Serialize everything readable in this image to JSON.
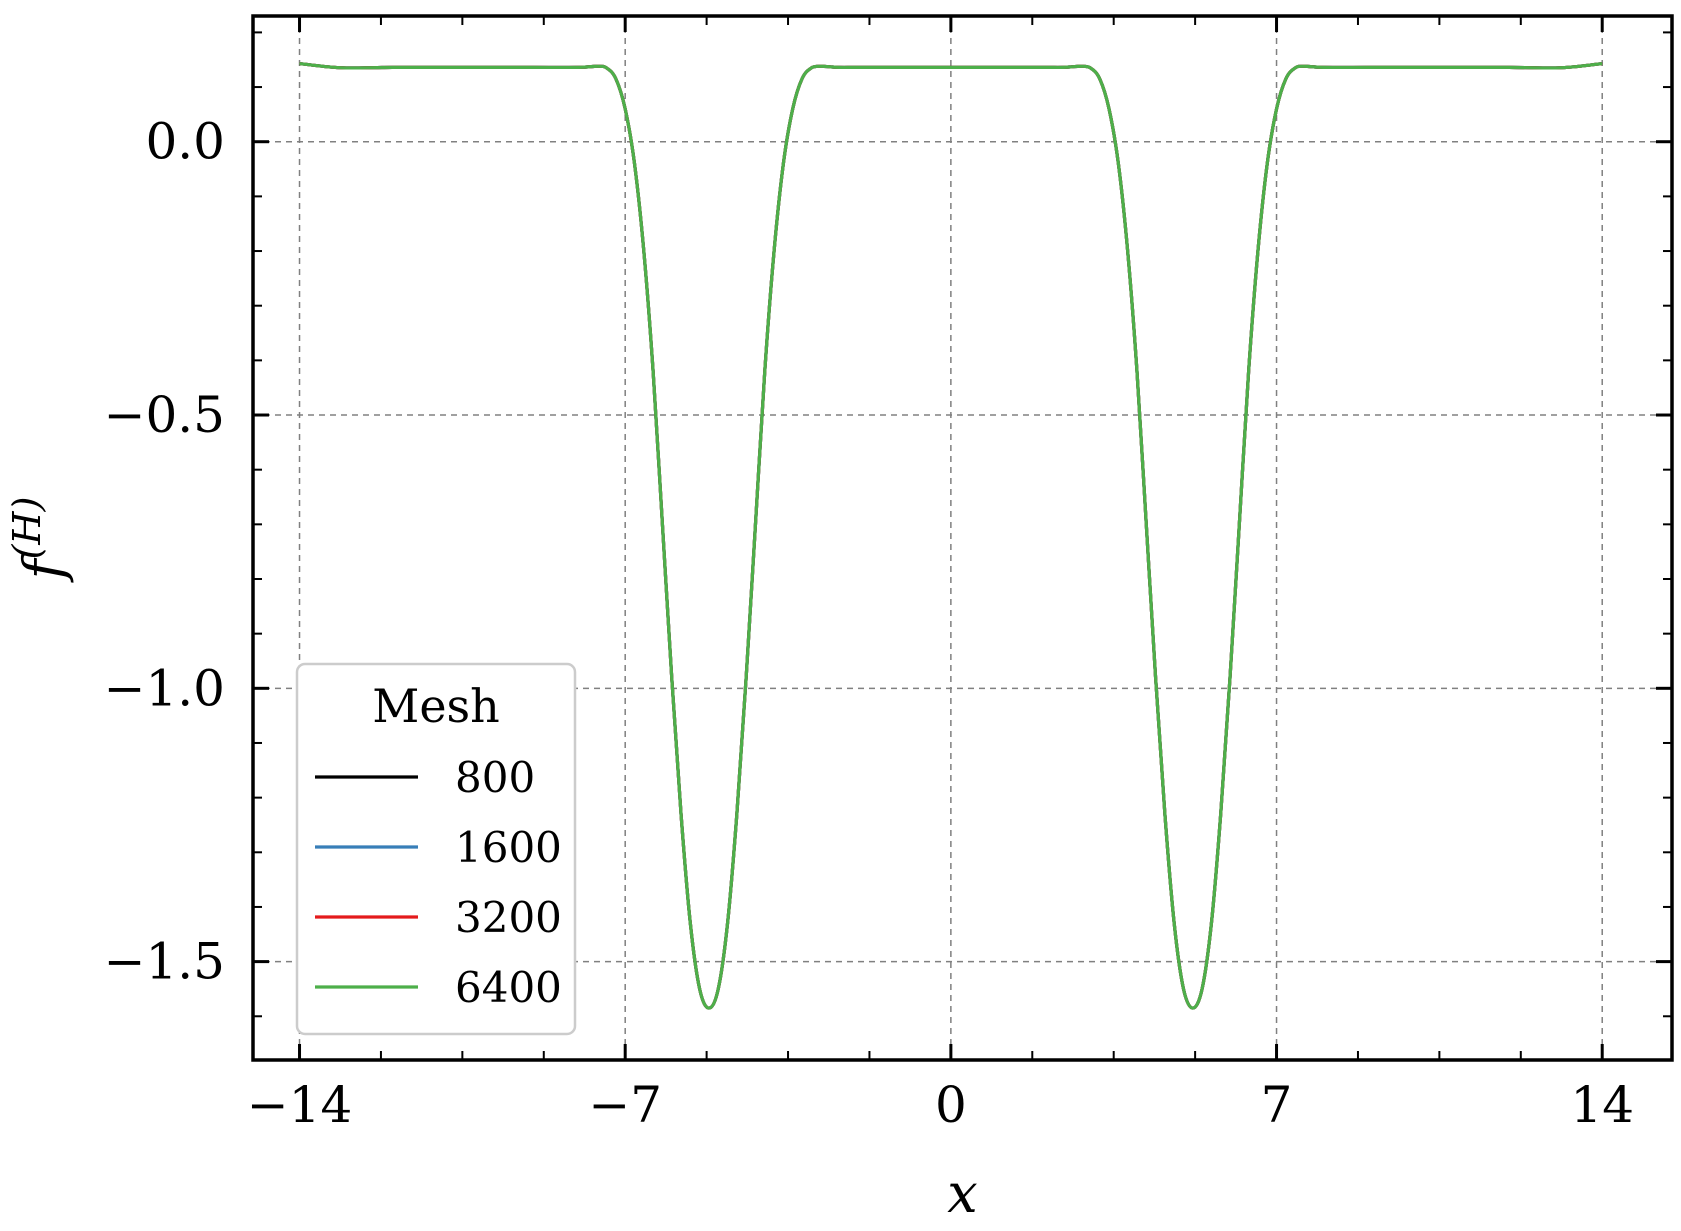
{
  "chart_data": {
    "type": "line",
    "xlabel": "x",
    "ylabel": "f(H)",
    "ylabel_base": "f",
    "ylabel_sup": "(H)",
    "xlim": [
      -15,
      15.5
    ],
    "ylim": [
      -1.68,
      0.23
    ],
    "xticks": [
      -14,
      -7,
      0,
      7,
      14
    ],
    "xtick_labels": [
      "−14",
      "−7",
      "0",
      "7",
      "14"
    ],
    "yticks": [
      0.0,
      -0.5,
      -1.0,
      -1.5
    ],
    "ytick_labels": [
      "0.0",
      "−0.5",
      "−1.0",
      "−1.5"
    ],
    "grid": true,
    "legend": {
      "title": "Mesh",
      "position": "lower-left",
      "entries": [
        "800",
        "1600",
        "3200",
        "6400"
      ]
    },
    "series": [
      {
        "name": "800",
        "color": "#000000"
      },
      {
        "name": "1600",
        "color": "#377eb8"
      },
      {
        "name": "3200",
        "color": "#e41a1c"
      },
      {
        "name": "6400",
        "color": "#4daf4a"
      }
    ],
    "x": [
      -14,
      -13.5,
      -13,
      -12,
      -11,
      -10,
      -9,
      -8,
      -7.6,
      -7.4,
      -7.2,
      -7.0,
      -6.8,
      -6.6,
      -6.4,
      -6.2,
      -6.0,
      -5.8,
      -5.6,
      -5.4,
      -5.2,
      -5.0,
      -4.8,
      -4.6,
      -4.4,
      -4.2,
      -4.0,
      -3.8,
      -3.6,
      -3.4,
      -3.2,
      -3.0,
      -2.8,
      -2.6,
      -2.4,
      -2.0,
      -1.0,
      0.0,
      1.0,
      2.0,
      2.4,
      2.6,
      2.8,
      3.0,
      3.2,
      3.4,
      3.6,
      3.8,
      4.0,
      4.2,
      4.4,
      4.6,
      4.8,
      5.0,
      5.2,
      5.4,
      5.6,
      5.8,
      6.0,
      6.2,
      6.4,
      6.6,
      6.8,
      7.0,
      7.2,
      7.4,
      7.6,
      8.0,
      9.0,
      10.0,
      11.0,
      12.0,
      13.0,
      13.5,
      14.0
    ],
    "y": [
      0.143,
      0.138,
      0.135,
      0.136,
      0.136,
      0.136,
      0.136,
      0.136,
      0.138,
      0.135,
      0.115,
      0.06,
      -0.04,
      -0.2,
      -0.42,
      -0.7,
      -0.98,
      -1.23,
      -1.43,
      -1.55,
      -1.585,
      -1.55,
      -1.43,
      -1.23,
      -0.98,
      -0.7,
      -0.42,
      -0.2,
      -0.04,
      0.06,
      0.115,
      0.135,
      0.138,
      0.137,
      0.136,
      0.136,
      0.136,
      0.136,
      0.136,
      0.136,
      0.136,
      0.137,
      0.138,
      0.135,
      0.115,
      0.06,
      -0.04,
      -0.2,
      -0.42,
      -0.7,
      -0.98,
      -1.23,
      -1.43,
      -1.55,
      -1.585,
      -1.55,
      -1.43,
      -1.23,
      -0.98,
      -0.7,
      -0.42,
      -0.2,
      -0.04,
      0.06,
      0.115,
      0.135,
      0.138,
      0.136,
      0.136,
      0.136,
      0.136,
      0.136,
      0.135,
      0.138,
      0.143
    ]
  }
}
